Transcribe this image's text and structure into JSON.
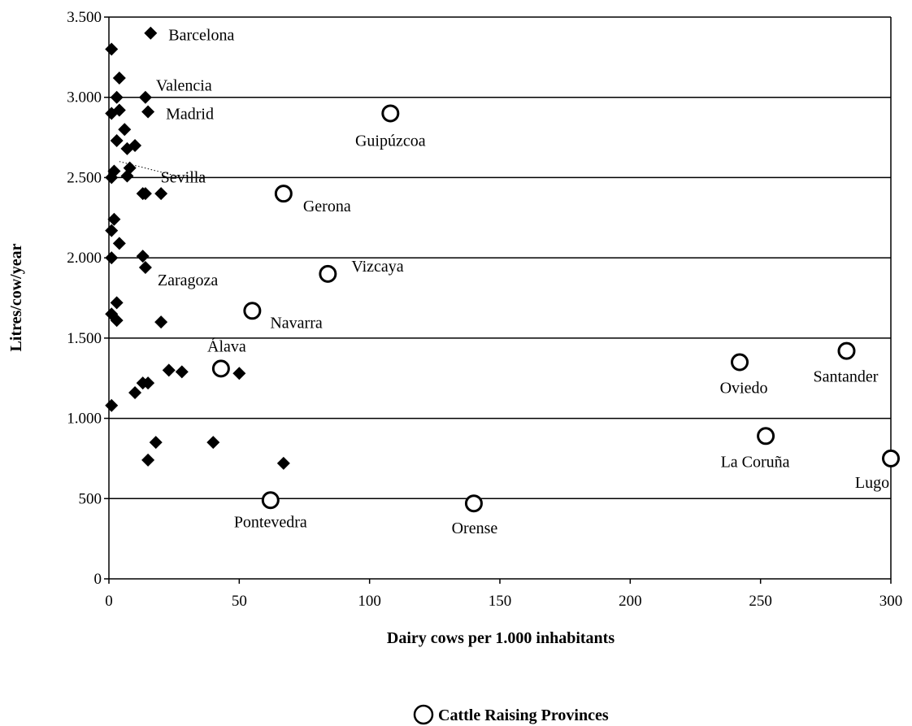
{
  "chart_data": {
    "type": "scatter",
    "xlabel": "Dairy cows per 1.000 inhabitants",
    "ylabel": "Litres/cow/year",
    "xlim": [
      0,
      300
    ],
    "ylim": [
      0,
      3500
    ],
    "x_ticks": [
      0,
      50,
      100,
      150,
      200,
      250,
      300
    ],
    "y_ticks": [
      0,
      500,
      1000,
      1500,
      2000,
      2500,
      3000,
      3500
    ],
    "x_tick_labels": [
      "0",
      "50",
      "100",
      "150",
      "200",
      "250",
      "300"
    ],
    "y_tick_labels": [
      "0",
      "500",
      "1.000",
      "1.500",
      "2.000",
      "2.500",
      "3.000",
      "3.500"
    ],
    "grid": "horizontal",
    "legend": {
      "position": "bottom-center",
      "entries": [
        {
          "label": "Cattle Raising Provinces",
          "marker": "circle"
        }
      ]
    },
    "series": [
      {
        "marker": "diamond",
        "color": "#000000",
        "points": [
          {
            "x": 16,
            "y": 3400,
            "label": "Barcelona"
          },
          {
            "x": 14,
            "y": 3000,
            "label": "Valencia"
          },
          {
            "x": 15,
            "y": 2910,
            "label": "Madrid"
          },
          {
            "x": 8,
            "y": 2560,
            "label": "Sevilla"
          },
          {
            "x": 14,
            "y": 1940,
            "label": "Zaragoza"
          },
          {
            "x": 1,
            "y": 3300
          },
          {
            "x": 4,
            "y": 3120
          },
          {
            "x": 3,
            "y": 3000
          },
          {
            "x": 1,
            "y": 2900
          },
          {
            "x": 4,
            "y": 2920
          },
          {
            "x": 6,
            "y": 2800
          },
          {
            "x": 3,
            "y": 2730
          },
          {
            "x": 7,
            "y": 2680
          },
          {
            "x": 10,
            "y": 2700
          },
          {
            "x": 1,
            "y": 2500
          },
          {
            "x": 2,
            "y": 2540
          },
          {
            "x": 7,
            "y": 2510
          },
          {
            "x": 13,
            "y": 2400
          },
          {
            "x": 14,
            "y": 2400
          },
          {
            "x": 20,
            "y": 2400
          },
          {
            "x": 2,
            "y": 2240
          },
          {
            "x": 1,
            "y": 2170
          },
          {
            "x": 4,
            "y": 2090
          },
          {
            "x": 1,
            "y": 2000
          },
          {
            "x": 13,
            "y": 2010
          },
          {
            "x": 3,
            "y": 1720
          },
          {
            "x": 1,
            "y": 1650
          },
          {
            "x": 3,
            "y": 1610
          },
          {
            "x": 20,
            "y": 1600
          },
          {
            "x": 23,
            "y": 1300
          },
          {
            "x": 28,
            "y": 1290
          },
          {
            "x": 50,
            "y": 1280
          },
          {
            "x": 13,
            "y": 1220
          },
          {
            "x": 15,
            "y": 1220
          },
          {
            "x": 10,
            "y": 1160
          },
          {
            "x": 1,
            "y": 1080
          },
          {
            "x": 18,
            "y": 850
          },
          {
            "x": 40,
            "y": 850
          },
          {
            "x": 15,
            "y": 740
          },
          {
            "x": 67,
            "y": 720
          }
        ]
      },
      {
        "name": "Cattle Raising Provinces",
        "marker": "circle",
        "color": "#000000",
        "points": [
          {
            "x": 108,
            "y": 2900,
            "label": "Guipúzcoa"
          },
          {
            "x": 67,
            "y": 2400,
            "label": "Gerona"
          },
          {
            "x": 84,
            "y": 1900,
            "label": "Vizcaya"
          },
          {
            "x": 55,
            "y": 1670,
            "label": "Navarra"
          },
          {
            "x": 43,
            "y": 1310,
            "label": "Álava"
          },
          {
            "x": 62,
            "y": 490,
            "label": "Pontevedra"
          },
          {
            "x": 140,
            "y": 470,
            "label": "Orense"
          },
          {
            "x": 242,
            "y": 1350,
            "label": "Oviedo"
          },
          {
            "x": 283,
            "y": 1420,
            "label": "Santander"
          },
          {
            "x": 252,
            "y": 890,
            "label": "La Coruña"
          },
          {
            "x": 300,
            "y": 750,
            "label": "Lugo"
          }
        ]
      }
    ],
    "annotations": [
      {
        "text": "Sevilla",
        "leader_from": {
          "x": 4,
          "y": 2600
        },
        "leader_style": "dotted"
      }
    ]
  }
}
